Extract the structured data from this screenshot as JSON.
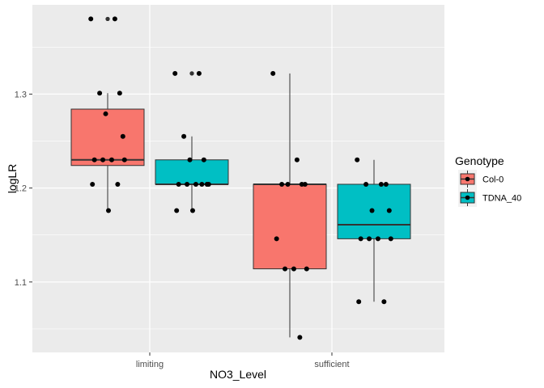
{
  "chart_data": {
    "type": "box",
    "xlabel": "NO3_Level",
    "ylabel": "logLR",
    "categories": [
      "limiting",
      "sufficient"
    ],
    "ylim": [
      1.025,
      1.395
    ],
    "yticks": [
      1.1,
      1.2,
      1.3
    ],
    "ytick_labels": [
      "1.1",
      "1.2",
      "1.3"
    ],
    "grid": true,
    "legend": {
      "title": "Genotype",
      "position": "right"
    },
    "colors": {
      "Col-0": "#F8766D",
      "TDNA_40": "#00BFC4",
      "panel": "#EBEBEB",
      "grid": "#FFFFFF"
    },
    "series": [
      {
        "name": "Col-0",
        "boxes": [
          {
            "category": "limiting",
            "whisker_low": 1.176,
            "q1": 1.224,
            "median": 1.23,
            "q3": 1.284,
            "whisker_high": 1.301,
            "points": [
              1.38,
              1.38,
              1.301,
              1.301,
              1.279,
              1.255,
              1.23,
              1.23,
              1.23,
              1.23,
              1.204,
              1.204,
              1.176
            ],
            "outliers": [
              1.38,
              1.38
            ]
          },
          {
            "category": "sufficient",
            "whisker_low": 1.041,
            "q1": 1.114,
            "median": 1.204,
            "q3": 1.204,
            "whisker_high": 1.322,
            "points": [
              1.322,
              1.23,
              1.204,
              1.204,
              1.204,
              1.204,
              1.146,
              1.114,
              1.114,
              1.114,
              1.041
            ],
            "outliers": []
          }
        ]
      },
      {
        "name": "TDNA_40",
        "boxes": [
          {
            "category": "limiting",
            "whisker_low": 1.176,
            "q1": 1.204,
            "median": 1.204,
            "q3": 1.23,
            "whisker_high": 1.255,
            "points": [
              1.322,
              1.322,
              1.255,
              1.23,
              1.23,
              1.204,
              1.204,
              1.204,
              1.204,
              1.204,
              1.204,
              1.176,
              1.176
            ],
            "outliers": [
              1.322,
              1.322
            ]
          },
          {
            "category": "sufficient",
            "whisker_low": 1.079,
            "q1": 1.146,
            "median": 1.161,
            "q3": 1.204,
            "whisker_high": 1.23,
            "points": [
              1.23,
              1.204,
              1.204,
              1.204,
              1.176,
              1.176,
              1.146,
              1.146,
              1.146,
              1.146,
              1.079,
              1.079
            ],
            "outliers": []
          }
        ]
      }
    ]
  }
}
